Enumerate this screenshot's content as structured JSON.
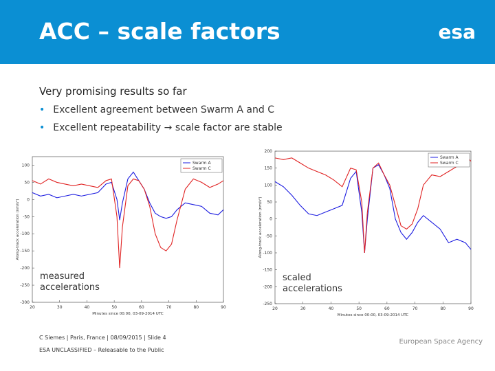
{
  "header": {
    "title": "ACC – scale factors",
    "logo": "esa"
  },
  "body": {
    "heading": "Very promising results so far",
    "bullets": [
      "Excellent agreement between Swarm A and C",
      "Excellent repeatability → scale factor are stable"
    ]
  },
  "chart_data": [
    {
      "type": "line",
      "xlabel": "Minutes since 00:00, 03-09-2014 UTC",
      "ylabel": "Along-track acceleration (nm/s²)",
      "annotation": "measured accelerations",
      "x": [
        20,
        23,
        26,
        29,
        32,
        35,
        38,
        41,
        44,
        47,
        49,
        51,
        52,
        53,
        55,
        57,
        59,
        61,
        63,
        65,
        67,
        69,
        71,
        73,
        76,
        79,
        82,
        85,
        88,
        90
      ],
      "xlim": [
        20,
        90
      ],
      "xticks": [
        20,
        30,
        40,
        50,
        60,
        70,
        80,
        90
      ],
      "ylim": [
        -300,
        125
      ],
      "yticks": [
        -300,
        -250,
        -200,
        -150,
        -100,
        -50,
        0,
        50,
        100
      ],
      "legend": "upper right",
      "series": [
        {
          "name": "Swarm A",
          "color": "#1c1ce0",
          "values": [
            20,
            10,
            15,
            5,
            10,
            15,
            10,
            15,
            20,
            45,
            50,
            0,
            -60,
            -10,
            60,
            80,
            55,
            30,
            -10,
            -40,
            -50,
            -55,
            -50,
            -30,
            -10,
            -15,
            -20,
            -40,
            -45,
            -30
          ]
        },
        {
          "name": "Swarm C",
          "color": "#e02222",
          "values": [
            55,
            45,
            60,
            50,
            45,
            40,
            45,
            40,
            35,
            55,
            60,
            -50,
            -200,
            -80,
            40,
            60,
            55,
            30,
            -20,
            -100,
            -140,
            -150,
            -130,
            -60,
            30,
            60,
            50,
            35,
            45,
            55
          ]
        }
      ]
    },
    {
      "type": "line",
      "xlabel": "Minutes since 00:00, 03-09-2014 UTC",
      "ylabel": "Along-track acceleration (nm/s²)",
      "annotation": "scaled accelerations",
      "x": [
        20,
        23,
        26,
        29,
        32,
        35,
        38,
        41,
        44,
        47,
        49,
        51,
        52,
        53,
        55,
        57,
        59,
        61,
        63,
        65,
        67,
        69,
        71,
        73,
        76,
        79,
        82,
        85,
        88,
        90
      ],
      "xlim": [
        20,
        90
      ],
      "xticks": [
        20,
        30,
        40,
        50,
        60,
        70,
        80,
        90
      ],
      "ylim": [
        -250,
        200
      ],
      "yticks": [
        -250,
        -200,
        -150,
        -100,
        -50,
        0,
        50,
        100,
        150,
        200
      ],
      "legend": "upper right",
      "series": [
        {
          "name": "Swarm A",
          "color": "#1c1ce0",
          "values": [
            110,
            95,
            70,
            40,
            15,
            10,
            20,
            30,
            40,
            120,
            140,
            20,
            -100,
            0,
            150,
            160,
            130,
            90,
            0,
            -40,
            -60,
            -40,
            -10,
            10,
            -10,
            -30,
            -70,
            -60,
            -70,
            -90
          ]
        },
        {
          "name": "Swarm C",
          "color": "#e02222",
          "values": [
            180,
            175,
            180,
            165,
            150,
            140,
            130,
            115,
            95,
            150,
            145,
            50,
            -100,
            20,
            150,
            165,
            130,
            100,
            40,
            -20,
            -30,
            -15,
            30,
            100,
            130,
            125,
            140,
            155,
            190,
            170
          ]
        }
      ]
    }
  ],
  "footer": {
    "credit": "C Siemes | Paris, France | 08/09/2015 | Slide 4",
    "classification": "ESA UNCLASSIFIED – Releasable to the Public",
    "agency": "European Space Agency"
  }
}
